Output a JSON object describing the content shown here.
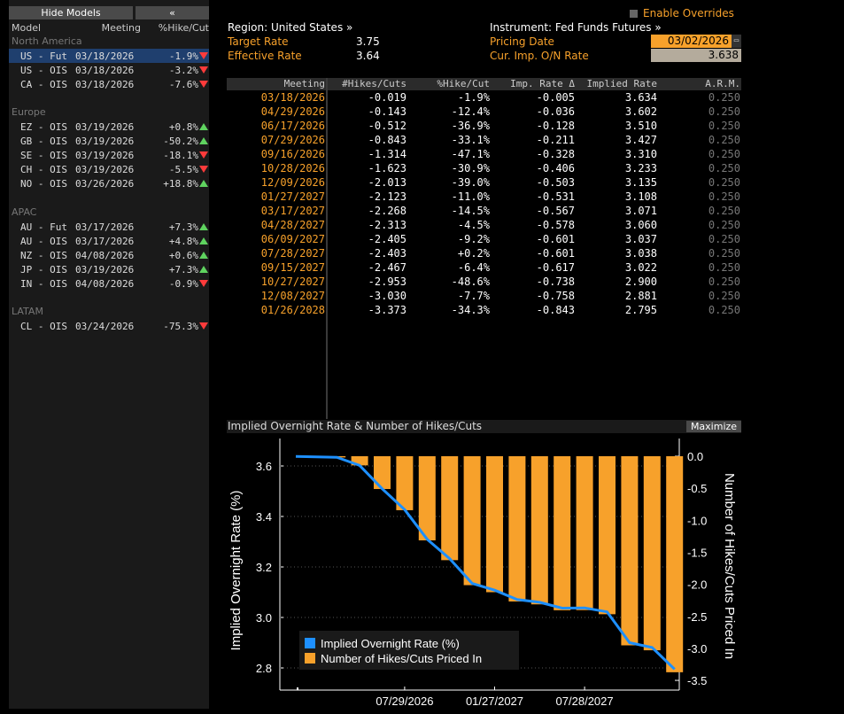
{
  "left_panel": {
    "hide_models": "Hide Models",
    "collapse": "«",
    "headers": {
      "model": "Model",
      "meeting": "Meeting",
      "hike": "%Hike/Cut"
    },
    "groups": [
      {
        "name": "North America",
        "rows": [
          {
            "model": "US - Fut",
            "meeting": "03/18/2026",
            "pct": "-1.9%",
            "dir": "down",
            "selected": true
          },
          {
            "model": "US - OIS",
            "meeting": "03/18/2026",
            "pct": "-3.2%",
            "dir": "down"
          },
          {
            "model": "CA - OIS",
            "meeting": "03/18/2026",
            "pct": "-7.6%",
            "dir": "down"
          }
        ]
      },
      {
        "name": "Europe",
        "rows": [
          {
            "model": "EZ - OIS",
            "meeting": "03/19/2026",
            "pct": "+0.8%",
            "dir": "up"
          },
          {
            "model": "GB - OIS",
            "meeting": "03/19/2026",
            "pct": "-50.2%",
            "dir": "up"
          },
          {
            "model": "SE - OIS",
            "meeting": "03/19/2026",
            "pct": "-18.1%",
            "dir": "down"
          },
          {
            "model": "CH - OIS",
            "meeting": "03/19/2026",
            "pct": "-5.5%",
            "dir": "down"
          },
          {
            "model": "NO - OIS",
            "meeting": "03/26/2026",
            "pct": "+18.8%",
            "dir": "up"
          }
        ]
      },
      {
        "name": "APAC",
        "rows": [
          {
            "model": "AU - Fut",
            "meeting": "03/17/2026",
            "pct": "+7.3%",
            "dir": "up"
          },
          {
            "model": "AU - OIS",
            "meeting": "03/17/2026",
            "pct": "+4.8%",
            "dir": "up"
          },
          {
            "model": "NZ - OIS",
            "meeting": "04/08/2026",
            "pct": "+0.6%",
            "dir": "up"
          },
          {
            "model": "JP - OIS",
            "meeting": "03/19/2026",
            "pct": "+7.3%",
            "dir": "up"
          },
          {
            "model": "IN - OIS",
            "meeting": "04/08/2026",
            "pct": "-0.9%",
            "dir": "down"
          }
        ]
      },
      {
        "name": "LATAM",
        "rows": [
          {
            "model": "CL - OIS",
            "meeting": "03/24/2026",
            "pct": "-75.3%",
            "dir": "down"
          }
        ]
      }
    ]
  },
  "overrides": {
    "label": "Enable Overrides"
  },
  "info": {
    "region": "Region: United States »",
    "target_label": "Target Rate",
    "target_value": "3.75",
    "effective_label": "Effective Rate",
    "effective_value": "3.64",
    "instrument": "Instrument: Fed Funds Futures »",
    "pricing_label": "Pricing Date",
    "pricing_value": "03/02/2026",
    "curimp_label": "Cur. Imp. O/N Rate",
    "curimp_value": "3.638"
  },
  "table": {
    "headers": [
      "Meeting",
      "#Hikes/Cuts",
      "%Hike/Cut",
      "Imp. Rate Δ",
      "Implied Rate",
      "A.R.M."
    ],
    "rows": [
      [
        "03/18/2026",
        "-0.019",
        "-1.9%",
        "-0.005",
        "3.634",
        "0.250"
      ],
      [
        "04/29/2026",
        "-0.143",
        "-12.4%",
        "-0.036",
        "3.602",
        "0.250"
      ],
      [
        "06/17/2026",
        "-0.512",
        "-36.9%",
        "-0.128",
        "3.510",
        "0.250"
      ],
      [
        "07/29/2026",
        "-0.843",
        "-33.1%",
        "-0.211",
        "3.427",
        "0.250"
      ],
      [
        "09/16/2026",
        "-1.314",
        "-47.1%",
        "-0.328",
        "3.310",
        "0.250"
      ],
      [
        "10/28/2026",
        "-1.623",
        "-30.9%",
        "-0.406",
        "3.233",
        "0.250"
      ],
      [
        "12/09/2026",
        "-2.013",
        "-39.0%",
        "-0.503",
        "3.135",
        "0.250"
      ],
      [
        "01/27/2027",
        "-2.123",
        "-11.0%",
        "-0.531",
        "3.108",
        "0.250"
      ],
      [
        "03/17/2027",
        "-2.268",
        "-14.5%",
        "-0.567",
        "3.071",
        "0.250"
      ],
      [
        "04/28/2027",
        "-2.313",
        "-4.5%",
        "-0.578",
        "3.060",
        "0.250"
      ],
      [
        "06/09/2027",
        "-2.405",
        "-9.2%",
        "-0.601",
        "3.037",
        "0.250"
      ],
      [
        "07/28/2027",
        "-2.403",
        "+0.2%",
        "-0.601",
        "3.038",
        "0.250"
      ],
      [
        "09/15/2027",
        "-2.467",
        "-6.4%",
        "-0.617",
        "3.022",
        "0.250"
      ],
      [
        "10/27/2027",
        "-2.953",
        "-48.6%",
        "-0.738",
        "2.900",
        "0.250"
      ],
      [
        "12/08/2027",
        "-3.030",
        "-7.7%",
        "-0.758",
        "2.881",
        "0.250"
      ],
      [
        "01/26/2028",
        "-3.373",
        "-34.3%",
        "-0.843",
        "2.795",
        "0.250"
      ]
    ]
  },
  "chart_title": "Implied Overnight Rate & Number of Hikes/Cuts",
  "maximize": "Maximize",
  "colors": {
    "accent": "#f7a12b",
    "line": "#1e90ff",
    "up": "#5fd35f",
    "down": "#ff3b3b"
  },
  "chart_data": {
    "type": "bar",
    "x": [
      "03/18/2026",
      "04/29/2026",
      "06/17/2026",
      "07/29/2026",
      "09/16/2026",
      "10/28/2026",
      "12/09/2026",
      "01/27/2027",
      "03/17/2027",
      "04/28/2027",
      "06/09/2027",
      "07/28/2027",
      "09/15/2027",
      "10/27/2027",
      "12/08/2027",
      "01/26/2028"
    ],
    "series": [
      {
        "name": "Implied Overnight Rate (%)",
        "type": "line",
        "axis": "left",
        "values": [
          3.634,
          3.602,
          3.51,
          3.427,
          3.31,
          3.233,
          3.135,
          3.108,
          3.071,
          3.06,
          3.037,
          3.038,
          3.022,
          2.9,
          2.881,
          2.795
        ]
      },
      {
        "name": "Number of Hikes/Cuts Priced In",
        "type": "bar",
        "axis": "right",
        "values": [
          -0.019,
          -0.143,
          -0.512,
          -0.843,
          -1.314,
          -1.623,
          -2.013,
          -2.123,
          -2.268,
          -2.313,
          -2.405,
          -2.403,
          -2.467,
          -2.953,
          -3.03,
          -3.373
        ]
      }
    ],
    "ylabel": "Implied Overnight Rate (%)",
    "y2label": "Number of Hikes/Cuts Priced In",
    "ylim": [
      2.75,
      3.7
    ],
    "y2lim": [
      -3.55,
      0.15
    ],
    "yticks": [
      "3.6",
      "3.4",
      "3.2",
      "3.0",
      "2.8"
    ],
    "y2ticks": [
      "0.0",
      "-0.5",
      "-1.0",
      "-1.5",
      "-2.0",
      "-2.5",
      "-3.0",
      "-3.5"
    ],
    "xticks": [
      "07/29/2026",
      "01/27/2027",
      "07/28/2027"
    ],
    "legend": "bottom-left"
  }
}
